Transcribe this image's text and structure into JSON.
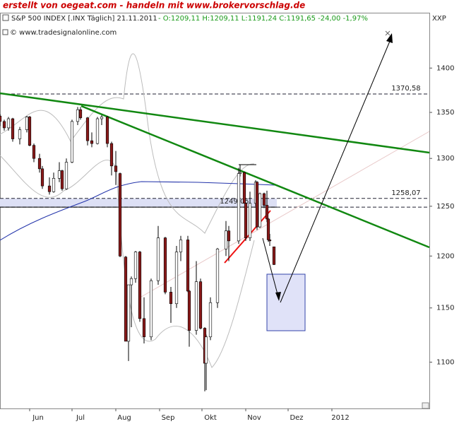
{
  "header": {
    "credit": "erstellt von oegeat.com - handeln mit www.brokervorschlag.de",
    "symbol": "S&P 500 INDEX [.INX Täglich] 21.11.2011",
    "quote": "- O:1209,11 H:1209,11 L:1191,24 C:1191,65 -24,00 -1,97%",
    "source": "© www.tradesignalonline.com",
    "axis_code": "XXP"
  },
  "chart_data": {
    "type": "candlestick",
    "log_scale": true,
    "up_color": "#ffffff",
    "down_color": "#8b1a1a",
    "xlim": [
      131,
      435
    ],
    "ylim": [
      1059,
      1465
    ],
    "xticks": [
      {
        "value": 152,
        "label": "Jun"
      },
      {
        "value": 182,
        "label": "Jul"
      },
      {
        "value": 213,
        "label": "Aug"
      },
      {
        "value": 244,
        "label": "Sep"
      },
      {
        "value": 274,
        "label": "Okt"
      },
      {
        "value": 305,
        "label": "Nov"
      },
      {
        "value": 335,
        "label": "Dez"
      },
      {
        "value": 366,
        "label": "2012"
      }
    ],
    "yticks": [
      1100,
      1150,
      1200,
      1250,
      1300,
      1350,
      1400
    ],
    "levels": [
      {
        "value": 1370.58,
        "label": "1370,58"
      },
      {
        "value": 1258.07,
        "label": "1258,07"
      },
      {
        "value": 1249.05,
        "label": "1249,05"
      }
    ],
    "x": [
      131,
      134,
      137,
      140,
      145,
      150,
      152,
      155,
      159,
      161,
      166,
      169,
      173,
      175,
      178,
      182,
      186,
      188,
      193,
      196,
      200,
      203,
      207,
      210,
      213,
      216,
      220,
      222,
      224,
      227,
      230,
      233,
      238,
      243,
      248,
      252,
      256,
      259,
      264,
      265,
      270,
      273,
      276,
      277,
      280,
      285,
      291,
      293,
      300,
      301,
      304,
      305,
      308,
      312,
      313,
      315,
      318,
      320,
      321,
      322,
      325
    ],
    "open": [
      1346,
      1340,
      1333,
      1343,
      1321,
      1331,
      1345,
      1314,
      1300,
      1289,
      1271,
      1265,
      1279,
      1287,
      1268,
      1296,
      1340,
      1353,
      1344,
      1319,
      1316,
      1343,
      1345,
      1316,
      1292,
      1284,
      1199,
      1119,
      1172,
      1178,
      1204,
      1140,
      1123,
      1176,
      1218,
      1165,
      1154,
      1204,
      1216,
      1166,
      1129,
      1175,
      1131,
      1099,
      1123,
      1155,
      1207,
      1225,
      1215,
      1284,
      1285,
      1253,
      1218,
      1253,
      1275,
      1229,
      1263,
      1251,
      1237,
      1216,
      1209.11
    ],
    "high": [
      1348,
      1342,
      1345,
      1344,
      1334,
      1346,
      1346,
      1316,
      1305,
      1292,
      1280,
      1285,
      1296,
      1288,
      1300,
      1342,
      1356,
      1356,
      1345,
      1328,
      1345,
      1347,
      1346,
      1318,
      1308,
      1285,
      1200,
      1172,
      1180,
      1205,
      1205,
      1160,
      1178,
      1230,
      1219,
      1170,
      1210,
      1220,
      1220,
      1167,
      1195,
      1178,
      1132,
      1125,
      1160,
      1208,
      1235,
      1230,
      1290,
      1293,
      1286,
      1254,
      1265,
      1277,
      1276,
      1264,
      1264,
      1266,
      1238,
      1222,
      1209.11
    ],
    "low": [
      1335,
      1330,
      1330,
      1318,
      1315,
      1328,
      1313,
      1296,
      1285,
      1268,
      1262,
      1264,
      1275,
      1266,
      1267,
      1295,
      1336,
      1342,
      1314,
      1312,
      1315,
      1336,
      1312,
      1282,
      1272,
      1199,
      1119,
      1101,
      1132,
      1174,
      1137,
      1117,
      1120,
      1172,
      1163,
      1136,
      1150,
      1195,
      1165,
      1114,
      1125,
      1130,
      1074,
      1075,
      1120,
      1150,
      1200,
      1195,
      1212,
      1281,
      1253,
      1215,
      1215,
      1250,
      1226,
      1228,
      1248,
      1234,
      1214,
      1210,
      1191.24
    ],
    "close": [
      1340,
      1333,
      1343,
      1321,
      1331,
      1345,
      1314,
      1300,
      1289,
      1271,
      1265,
      1279,
      1287,
      1268,
      1296,
      1340,
      1353,
      1344,
      1319,
      1316,
      1343,
      1345,
      1316,
      1292,
      1286,
      1200,
      1119,
      1172,
      1178,
      1204,
      1140,
      1123,
      1176,
      1218,
      1165,
      1154,
      1204,
      1216,
      1166,
      1129,
      1175,
      1131,
      1099,
      1123,
      1155,
      1207,
      1225,
      1215,
      1284,
      1285,
      1253,
      1218,
      1253,
      1275,
      1229,
      1263,
      1251,
      1237,
      1216,
      1215,
      1191.65
    ]
  }
}
